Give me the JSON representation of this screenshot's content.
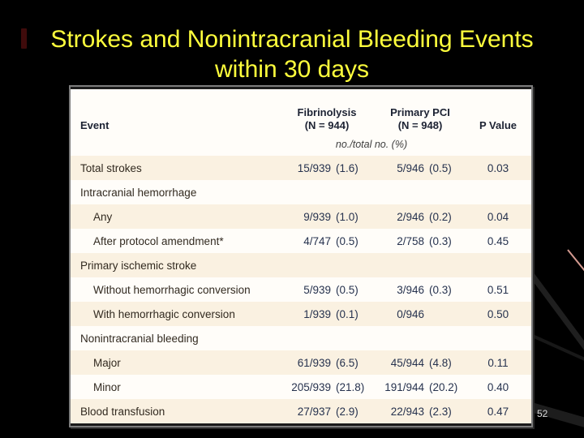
{
  "slide": {
    "title_line1": "Strokes and Nonintracranial Bleeding Events",
    "title_line2": "within 30 days",
    "page_number": "52",
    "title_color": "#ffff3c",
    "background_color": "#000000"
  },
  "table": {
    "columns": {
      "event": "Event",
      "fibrinolysis_line1": "Fibrinolysis",
      "fibrinolysis_line2": "(N = 944)",
      "pci_line1": "Primary PCI",
      "pci_line2": "(N = 948)",
      "pvalue": "P Value"
    },
    "units_note": "no./total no. (%)",
    "shade_color": "#faf1e1",
    "plain_color": "#fffdf9",
    "rows": [
      {
        "label": "Total strokes",
        "indent": 0,
        "fib": "15/939 (1.6)",
        "pci": "5/946 (0.5)",
        "p": "0.03",
        "shaded": true
      },
      {
        "label": "Intracranial hemorrhage",
        "indent": 0,
        "fib": "",
        "pci": "",
        "p": "",
        "shaded": false
      },
      {
        "label": "Any",
        "indent": 1,
        "fib": "9/939 (1.0)",
        "pci": "2/946 (0.2)",
        "p": "0.04",
        "shaded": true
      },
      {
        "label": "After protocol amendment*",
        "indent": 1,
        "fib": "4/747 (0.5)",
        "pci": "2/758 (0.3)",
        "p": "0.45",
        "shaded": false
      },
      {
        "label": "Primary ischemic stroke",
        "indent": 0,
        "fib": "",
        "pci": "",
        "p": "",
        "shaded": true
      },
      {
        "label": "Without hemorrhagic conversion",
        "indent": 1,
        "fib": "5/939 (0.5)",
        "pci": "3/946 (0.3)",
        "p": "0.51",
        "shaded": false
      },
      {
        "label": "With hemorrhagic conversion",
        "indent": 1,
        "fib": "1/939 (0.1)",
        "pci": "0/946",
        "p": "0.50",
        "shaded": true
      },
      {
        "label": "Nonintracranial bleeding",
        "indent": 0,
        "fib": "",
        "pci": "",
        "p": "",
        "shaded": false
      },
      {
        "label": "Major",
        "indent": 1,
        "fib": "61/939 (6.5)",
        "pci": "45/944 (4.8)",
        "p": "0.11",
        "shaded": true
      },
      {
        "label": "Minor",
        "indent": 1,
        "fib": "205/939 (21.8)",
        "pci": "191/944 (20.2)",
        "p": "0.40",
        "shaded": false
      },
      {
        "label": "Blood transfusion",
        "indent": 0,
        "fib": "27/937 (2.9)",
        "pci": "22/943 (2.3)",
        "p": "0.47",
        "shaded": true
      }
    ]
  }
}
